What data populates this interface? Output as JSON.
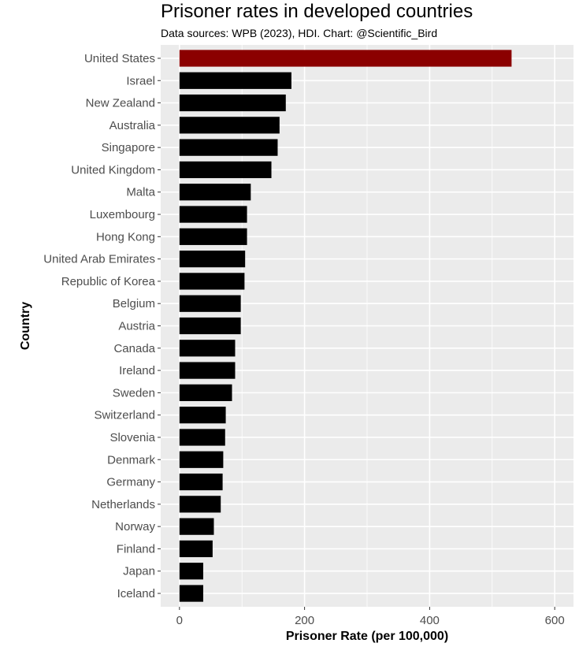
{
  "chart_data": {
    "type": "bar",
    "orientation": "horizontal",
    "title": "Prisoner rates in developed countries",
    "subtitle": "Data sources: WPB (2023), HDI. Chart: @Scientific_Bird",
    "xlabel": "Prisoner Rate (per 100,000)",
    "ylabel": "Country",
    "xlim": [
      -30,
      630
    ],
    "x_ticks": [
      0,
      200,
      400,
      600
    ],
    "grid": true,
    "colors": {
      "highlight": "#8b0000",
      "default": "#000000",
      "panel": "#ebebeb",
      "grid": "#ffffff"
    },
    "highlight": "United States",
    "categories": [
      "United States",
      "Israel",
      "New Zealand",
      "Australia",
      "Singapore",
      "United Kingdom",
      "Malta",
      "Luxembourg",
      "Hong Kong",
      "United Arab Emirates",
      "Republic of Korea",
      "Belgium",
      "Austria",
      "Canada",
      "Ireland",
      "Sweden",
      "Switzerland",
      "Slovenia",
      "Denmark",
      "Germany",
      "Netherlands",
      "Norway",
      "Finland",
      "Japan",
      "Iceland"
    ],
    "values": [
      531,
      179,
      170,
      160,
      157,
      147,
      114,
      108,
      108,
      105,
      104,
      98,
      98,
      89,
      89,
      84,
      74,
      73,
      70,
      69,
      66,
      55,
      53,
      38,
      38
    ]
  }
}
